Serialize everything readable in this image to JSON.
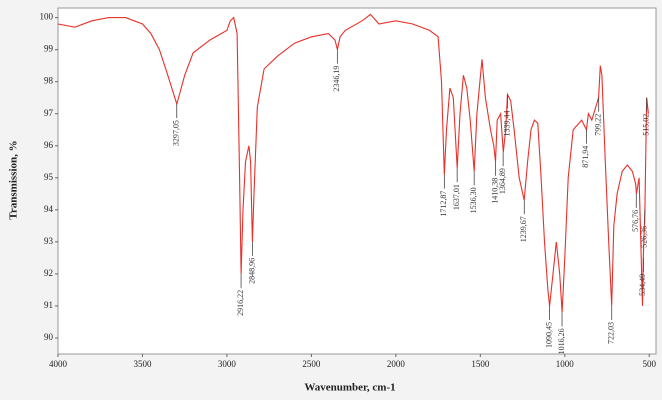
{
  "chart_data": {
    "type": "line",
    "xlabel": "Wavenumber, cm-1",
    "ylabel": "Transmission, %",
    "color": "#e8302a",
    "xlim": [
      4000,
      460
    ],
    "ylim": [
      89.5,
      100.3
    ],
    "xticks": [
      4000,
      3500,
      3000,
      2500,
      2000,
      1500,
      1000,
      500
    ],
    "yticks": [
      90,
      91,
      92,
      93,
      94,
      95,
      96,
      97,
      98,
      99,
      100
    ],
    "x": [
      4000,
      3900,
      3800,
      3700,
      3600,
      3500,
      3450,
      3400,
      3350,
      3297,
      3250,
      3200,
      3100,
      3000,
      2980,
      2960,
      2940,
      2925,
      2916,
      2905,
      2890,
      2870,
      2860,
      2849,
      2840,
      2820,
      2780,
      2700,
      2600,
      2500,
      2400,
      2360,
      2346,
      2330,
      2300,
      2200,
      2150,
      2100,
      2000,
      1900,
      1800,
      1750,
      1730,
      1713,
      1700,
      1680,
      1660,
      1637,
      1620,
      1600,
      1580,
      1560,
      1536,
      1520,
      1490,
      1470,
      1440,
      1420,
      1410,
      1400,
      1380,
      1364,
      1350,
      1339,
      1320,
      1300,
      1270,
      1240,
      1220,
      1200,
      1180,
      1160,
      1140,
      1120,
      1100,
      1090,
      1070,
      1050,
      1030,
      1016,
      1000,
      980,
      950,
      900,
      872,
      860,
      840,
      800,
      790,
      780,
      760,
      740,
      722,
      710,
      690,
      660,
      630,
      600,
      580,
      576,
      560,
      540,
      535,
      526,
      520,
      515,
      505
    ],
    "y": [
      99.8,
      99.7,
      99.9,
      100.0,
      100.0,
      99.8,
      99.5,
      99.0,
      98.2,
      97.3,
      98.2,
      98.9,
      99.3,
      99.6,
      99.9,
      100.0,
      99.5,
      95.0,
      92.0,
      94.0,
      95.5,
      96.0,
      95.5,
      93.0,
      94.5,
      97.2,
      98.4,
      98.8,
      99.2,
      99.4,
      99.5,
      99.3,
      99.0,
      99.4,
      99.6,
      99.9,
      100.1,
      99.8,
      99.9,
      99.8,
      99.6,
      99.4,
      98.0,
      95.1,
      96.5,
      97.8,
      97.5,
      95.3,
      97.0,
      98.2,
      97.8,
      96.8,
      95.2,
      97.0,
      98.7,
      97.5,
      96.5,
      96.0,
      95.5,
      96.8,
      97.0,
      95.8,
      96.5,
      97.6,
      97.4,
      96.5,
      95.0,
      94.3,
      95.5,
      96.5,
      96.8,
      96.7,
      95.0,
      93.0,
      91.5,
      91.0,
      92.0,
      93.0,
      92.0,
      90.8,
      92.5,
      95.0,
      96.5,
      96.8,
      96.5,
      97.0,
      96.8,
      97.5,
      98.5,
      98.2,
      95.5,
      93.0,
      91.0,
      93.5,
      94.5,
      95.2,
      95.4,
      95.2,
      94.8,
      94.5,
      95.0,
      91.0,
      92.5,
      94.0,
      96.0,
      97.5,
      97.0
    ],
    "annotations": [
      {
        "text": "3297,05",
        "x": 3297.05,
        "y": 97.3
      },
      {
        "text": "2916,22",
        "x": 2916.22,
        "y": 92.0
      },
      {
        "text": "2848,96",
        "x": 2848.96,
        "y": 93.0
      },
      {
        "text": "2346,19",
        "x": 2346.19,
        "y": 99.0
      },
      {
        "text": "1712,87",
        "x": 1712.87,
        "y": 95.1
      },
      {
        "text": "1637,01",
        "x": 1637.01,
        "y": 95.3
      },
      {
        "text": "1536,30",
        "x": 1536.3,
        "y": 95.2
      },
      {
        "text": "1410,38",
        "x": 1410.38,
        "y": 95.5
      },
      {
        "text": "1364,89",
        "x": 1364.89,
        "y": 95.8
      },
      {
        "text": "1339,44",
        "x": 1339.44,
        "y": 97.6
      },
      {
        "text": "1239,67",
        "x": 1239.67,
        "y": 94.3
      },
      {
        "text": "1090,45",
        "x": 1090.45,
        "y": 91.0
      },
      {
        "text": "1016,26",
        "x": 1016.26,
        "y": 90.8
      },
      {
        "text": "871,94",
        "x": 871.94,
        "y": 96.5
      },
      {
        "text": "799,22",
        "x": 799.22,
        "y": 97.5
      },
      {
        "text": "722,03",
        "x": 722.03,
        "y": 91.0
      },
      {
        "text": "576,76",
        "x": 576.76,
        "y": 94.5
      },
      {
        "text": "534,49",
        "x": 534.49,
        "y": 92.5
      },
      {
        "text": "526,36",
        "x": 526.36,
        "y": 94.0
      },
      {
        "text": "515,02",
        "x": 515.02,
        "y": 97.5
      }
    ]
  }
}
